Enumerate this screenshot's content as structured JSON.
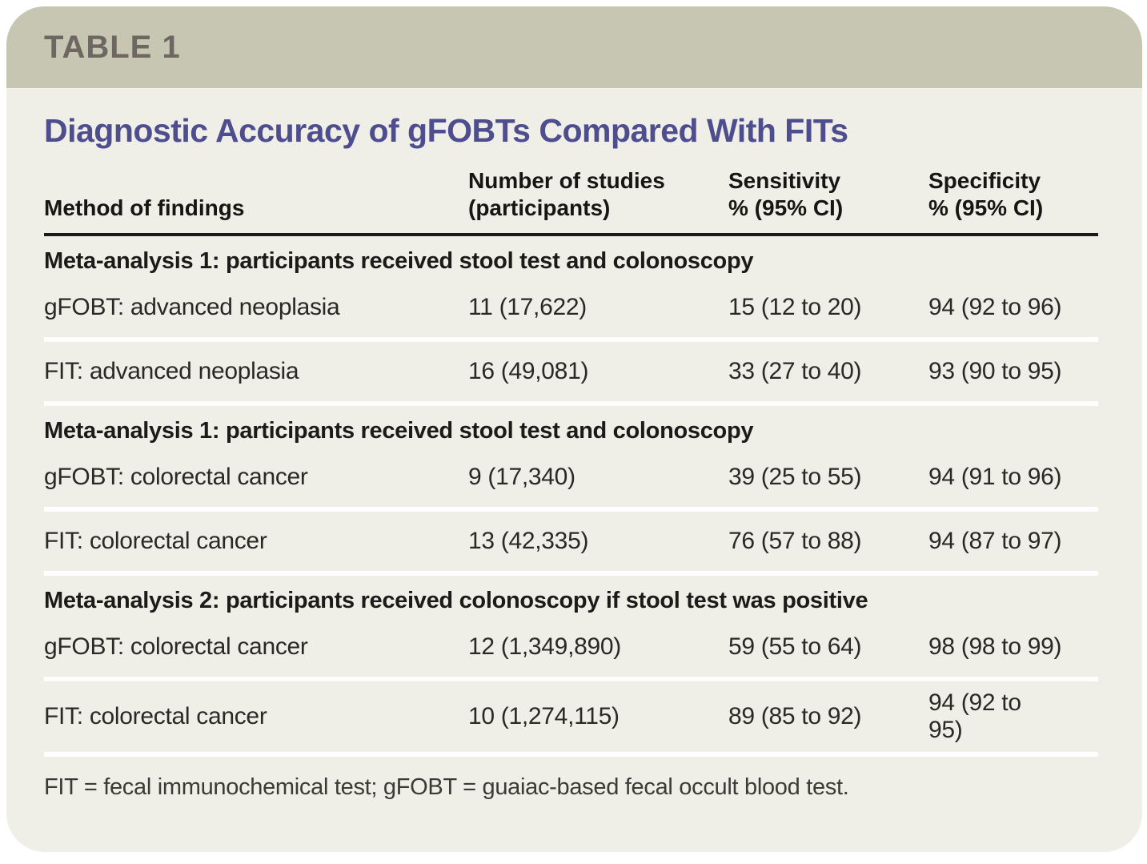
{
  "table_tag": "TABLE 1",
  "title": "Diagnostic Accuracy of gFOBTs Compared With FITs",
  "columns": [
    "Method of findings",
    "Number of studies\n(participants)",
    "Sensitivity\n% (95% CI)",
    "Specificity\n% (95% CI)"
  ],
  "sections": [
    {
      "heading": "Meta-analysis 1: participants received stool test and colonoscopy",
      "rows": [
        {
          "method": "gFOBT: advanced neoplasia",
          "studies": "11 (17,622)",
          "sensitivity": "15 (12 to 20)",
          "specificity": "94 (92 to 96)"
        },
        {
          "method": "FIT: advanced neoplasia",
          "studies": "16 (49,081)",
          "sensitivity": "33 (27 to 40)",
          "specificity": "93 (90 to 95)"
        }
      ]
    },
    {
      "heading": "Meta-analysis 1: participants received stool test and colonoscopy",
      "rows": [
        {
          "method": "gFOBT: colorectal cancer",
          "studies": "9 (17,340)",
          "sensitivity": "39 (25 to 55)",
          "specificity": "94 (91 to 96)"
        },
        {
          "method": "FIT: colorectal cancer",
          "studies": "13 (42,335)",
          "sensitivity": "76 (57 to 88)",
          "specificity": "94 (87 to 97)"
        }
      ]
    },
    {
      "heading": "Meta-analysis 2: participants received colonoscopy if stool test was positive",
      "rows": [
        {
          "method": "gFOBT: colorectal cancer",
          "studies": "12 (1,349,890)",
          "sensitivity": "59 (55 to 64)",
          "specificity": "98 (98 to 99)"
        },
        {
          "method": "FIT: colorectal cancer",
          "studies": "10 (1,274,115)",
          "sensitivity": "89 (85 to 92)",
          "specificity": "94 (92 to\n95)"
        }
      ]
    }
  ],
  "footnote": "FIT = fecal immunochemical test; gFOBT = guaiac-based fecal occult blood test.",
  "colors": {
    "band": "#c6c6b3",
    "body_bg": "#efeee7",
    "tag_text": "#6e6660",
    "title_text": "#4e4e8f",
    "text": "#2a2926",
    "header_rule": "#1b1b19",
    "row_separator": "#ffffff"
  }
}
